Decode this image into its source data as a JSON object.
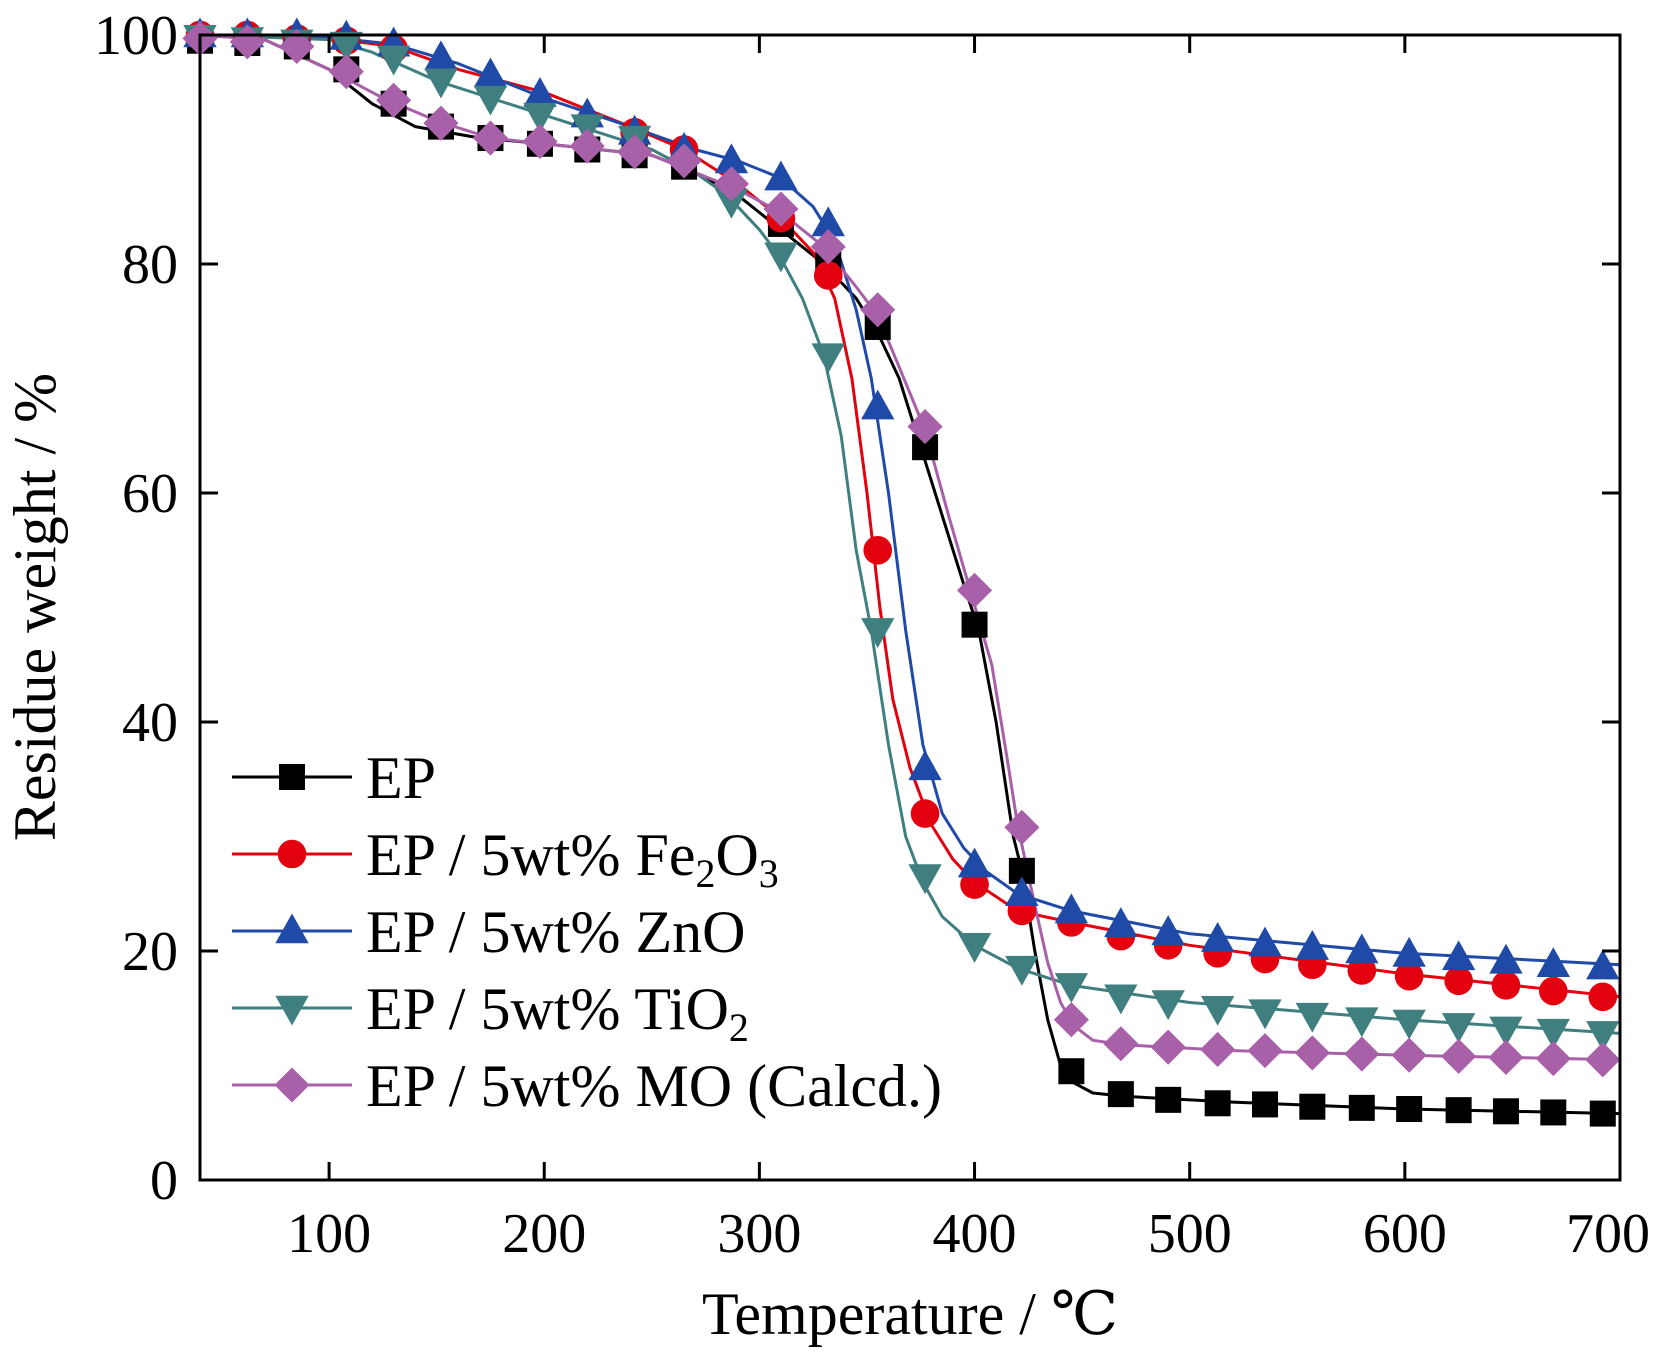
{
  "chart_data": {
    "type": "line",
    "xlabel": "Temperature / ℃",
    "ylabel": "Residue weight / %",
    "xlim": [
      40,
      700
    ],
    "ylim": [
      0,
      100
    ],
    "xticks": [
      100,
      200,
      300,
      400,
      500,
      600,
      700
    ],
    "yticks": [
      0,
      20,
      40,
      60,
      80,
      100
    ],
    "grid": false,
    "legend_position": "bottom-left",
    "series": [
      {
        "name": "EP",
        "color": "#000000",
        "marker": "square",
        "curve": [
          [
            40,
            100
          ],
          [
            70,
            99.6
          ],
          [
            100,
            97
          ],
          [
            120,
            94
          ],
          [
            140,
            92
          ],
          [
            170,
            91
          ],
          [
            200,
            90.5
          ],
          [
            250,
            89.5
          ],
          [
            270,
            88
          ],
          [
            290,
            86
          ],
          [
            310,
            83
          ],
          [
            330,
            80
          ],
          [
            345,
            77
          ],
          [
            355,
            74
          ],
          [
            365,
            70
          ],
          [
            375,
            64
          ],
          [
            385,
            58
          ],
          [
            395,
            52
          ],
          [
            402,
            48
          ],
          [
            410,
            40
          ],
          [
            418,
            30
          ],
          [
            422,
            27
          ],
          [
            428,
            20
          ],
          [
            434,
            14
          ],
          [
            440,
            10
          ],
          [
            446,
            8.5
          ],
          [
            455,
            7.6
          ],
          [
            470,
            7.3
          ],
          [
            520,
            6.8
          ],
          [
            600,
            6.2
          ],
          [
            700,
            5.8
          ]
        ],
        "markers": [
          [
            40,
            99.5
          ],
          [
            62,
            99.3
          ],
          [
            85,
            99
          ],
          [
            108,
            97
          ],
          [
            130,
            94
          ],
          [
            152,
            92
          ],
          [
            175,
            91
          ],
          [
            198,
            90.5
          ],
          [
            220,
            90
          ],
          [
            242,
            89.5
          ],
          [
            265,
            88.5
          ],
          [
            310,
            83.5
          ],
          [
            332,
            80
          ],
          [
            355,
            74.5
          ],
          [
            377,
            64
          ],
          [
            400,
            48.5
          ],
          [
            422,
            27
          ],
          [
            445,
            9.5
          ],
          [
            468,
            7.5
          ],
          [
            490,
            7
          ],
          [
            513,
            6.7
          ],
          [
            535,
            6.6
          ],
          [
            557,
            6.4
          ],
          [
            580,
            6.3
          ],
          [
            602,
            6.2
          ],
          [
            625,
            6.1
          ],
          [
            647,
            6
          ],
          [
            669,
            5.9
          ],
          [
            692,
            5.8
          ]
        ]
      },
      {
        "name": "EP / 5wt% Fe2O3",
        "color": "#e3000f",
        "marker": "circle",
        "curve": [
          [
            40,
            100
          ],
          [
            100,
            99.7
          ],
          [
            130,
            99
          ],
          [
            160,
            97
          ],
          [
            200,
            95
          ],
          [
            240,
            92
          ],
          [
            265,
            90
          ],
          [
            290,
            87
          ],
          [
            310,
            84
          ],
          [
            325,
            81
          ],
          [
            335,
            77
          ],
          [
            343,
            70
          ],
          [
            350,
            60
          ],
          [
            356,
            50
          ],
          [
            362,
            42
          ],
          [
            370,
            36
          ],
          [
            380,
            31
          ],
          [
            390,
            28
          ],
          [
            400,
            26
          ],
          [
            420,
            23.5
          ],
          [
            445,
            22.5
          ],
          [
            500,
            20.5
          ],
          [
            600,
            18
          ],
          [
            700,
            16
          ]
        ],
        "markers": [
          [
            40,
            100
          ],
          [
            62,
            100
          ],
          [
            85,
            99.7
          ],
          [
            108,
            99.5
          ],
          [
            130,
            98.8
          ],
          [
            242,
            91.5
          ],
          [
            265,
            90
          ],
          [
            310,
            84
          ],
          [
            332,
            79
          ],
          [
            355,
            55
          ],
          [
            377,
            32
          ],
          [
            400,
            25.8
          ],
          [
            422,
            23.5
          ],
          [
            445,
            22.5
          ],
          [
            468,
            21.3
          ],
          [
            490,
            20.5
          ],
          [
            513,
            19.8
          ],
          [
            535,
            19.3
          ],
          [
            557,
            18.8
          ],
          [
            580,
            18.3
          ],
          [
            602,
            17.8
          ],
          [
            625,
            17.4
          ],
          [
            647,
            17
          ],
          [
            669,
            16.5
          ],
          [
            692,
            16
          ]
        ]
      },
      {
        "name": "EP / 5wt% ZnO",
        "color": "#1f4aa8",
        "marker": "triangle-up",
        "curve": [
          [
            40,
            100
          ],
          [
            100,
            99.8
          ],
          [
            130,
            99.2
          ],
          [
            160,
            97.5
          ],
          [
            200,
            94.5
          ],
          [
            240,
            92
          ],
          [
            270,
            90
          ],
          [
            290,
            89
          ],
          [
            310,
            87.5
          ],
          [
            325,
            85
          ],
          [
            335,
            82
          ],
          [
            345,
            76
          ],
          [
            352,
            70
          ],
          [
            360,
            60
          ],
          [
            368,
            48
          ],
          [
            376,
            38
          ],
          [
            385,
            32
          ],
          [
            395,
            29
          ],
          [
            405,
            27
          ],
          [
            420,
            25
          ],
          [
            445,
            23.5
          ],
          [
            500,
            21.5
          ],
          [
            600,
            19.8
          ],
          [
            700,
            18.8
          ]
        ],
        "markers": [
          [
            40,
            100
          ],
          [
            62,
            100
          ],
          [
            85,
            100
          ],
          [
            108,
            99.8
          ],
          [
            130,
            99.2
          ],
          [
            152,
            98
          ],
          [
            175,
            96.5
          ],
          [
            198,
            94.8
          ],
          [
            220,
            93
          ],
          [
            242,
            91.5
          ],
          [
            265,
            90
          ],
          [
            287,
            89
          ],
          [
            310,
            87.5
          ],
          [
            332,
            83.5
          ],
          [
            355,
            67.5
          ],
          [
            377,
            36
          ],
          [
            400,
            27.5
          ],
          [
            422,
            25
          ],
          [
            445,
            23.5
          ],
          [
            468,
            22.3
          ],
          [
            490,
            21.6
          ],
          [
            513,
            21
          ],
          [
            535,
            20.6
          ],
          [
            557,
            20.3
          ],
          [
            580,
            20
          ],
          [
            602,
            19.7
          ],
          [
            625,
            19.4
          ],
          [
            647,
            19.1
          ],
          [
            669,
            18.8
          ],
          [
            692,
            18.6
          ]
        ]
      },
      {
        "name": "EP / 5wt% TiO2",
        "color": "#3f7f7f",
        "marker": "triangle-down",
        "curve": [
          [
            40,
            100
          ],
          [
            100,
            99.6
          ],
          [
            120,
            98.5
          ],
          [
            150,
            96
          ],
          [
            175,
            94.5
          ],
          [
            200,
            93
          ],
          [
            250,
            90
          ],
          [
            270,
            88
          ],
          [
            285,
            86
          ],
          [
            300,
            83
          ],
          [
            310,
            80.5
          ],
          [
            320,
            77
          ],
          [
            330,
            72
          ],
          [
            338,
            65
          ],
          [
            345,
            55
          ],
          [
            352,
            48
          ],
          [
            360,
            38
          ],
          [
            368,
            30
          ],
          [
            376,
            26
          ],
          [
            385,
            23
          ],
          [
            400,
            20.5
          ],
          [
            420,
            18.5
          ],
          [
            445,
            17
          ],
          [
            500,
            15.5
          ],
          [
            600,
            14
          ],
          [
            700,
            12.8
          ]
        ],
        "markers": [
          [
            40,
            99.8
          ],
          [
            62,
            99.6
          ],
          [
            85,
            99.4
          ],
          [
            108,
            99.2
          ],
          [
            130,
            98
          ],
          [
            152,
            96
          ],
          [
            175,
            94.5
          ],
          [
            198,
            93
          ],
          [
            220,
            92
          ],
          [
            242,
            91
          ],
          [
            287,
            85.5
          ],
          [
            310,
            80.8
          ],
          [
            332,
            72
          ],
          [
            355,
            48
          ],
          [
            377,
            26.5
          ],
          [
            400,
            20.5
          ],
          [
            422,
            18.5
          ],
          [
            445,
            17
          ],
          [
            468,
            16
          ],
          [
            490,
            15.5
          ],
          [
            513,
            15
          ],
          [
            535,
            14.7
          ],
          [
            557,
            14.4
          ],
          [
            580,
            14
          ],
          [
            602,
            13.8
          ],
          [
            625,
            13.5
          ],
          [
            647,
            13.2
          ],
          [
            669,
            13
          ],
          [
            692,
            12.8
          ]
        ]
      },
      {
        "name": "EP / 5wt% MO (Calcd.)",
        "color": "#a860a8",
        "marker": "diamond",
        "curve": [
          [
            40,
            100
          ],
          [
            70,
            99.6
          ],
          [
            100,
            97
          ],
          [
            125,
            94.5
          ],
          [
            150,
            92.5
          ],
          [
            175,
            91
          ],
          [
            200,
            90.5
          ],
          [
            250,
            89.5
          ],
          [
            270,
            88
          ],
          [
            290,
            86.5
          ],
          [
            310,
            84.5
          ],
          [
            330,
            81.5
          ],
          [
            345,
            78
          ],
          [
            355,
            75.5
          ],
          [
            365,
            71
          ],
          [
            377,
            65.5
          ],
          [
            388,
            58
          ],
          [
            398,
            51.5
          ],
          [
            408,
            45
          ],
          [
            415,
            37
          ],
          [
            420,
            31
          ],
          [
            428,
            24
          ],
          [
            434,
            19
          ],
          [
            440,
            15.5
          ],
          [
            446,
            13.5
          ],
          [
            455,
            12.2
          ],
          [
            470,
            11.8
          ],
          [
            520,
            11.3
          ],
          [
            600,
            10.9
          ],
          [
            700,
            10.5
          ]
        ],
        "markers": [
          [
            40,
            99.7
          ],
          [
            62,
            99.4
          ],
          [
            85,
            99
          ],
          [
            108,
            96.8
          ],
          [
            130,
            94.3
          ],
          [
            152,
            92.3
          ],
          [
            175,
            91
          ],
          [
            198,
            90.7
          ],
          [
            220,
            90.3
          ],
          [
            242,
            89.8
          ],
          [
            265,
            89
          ],
          [
            287,
            87
          ],
          [
            310,
            84.8
          ],
          [
            332,
            81.5
          ],
          [
            355,
            76
          ],
          [
            377,
            65.8
          ],
          [
            400,
            51.5
          ],
          [
            422,
            30.8
          ],
          [
            445,
            14
          ],
          [
            468,
            11.9
          ],
          [
            490,
            11.6
          ],
          [
            513,
            11.4
          ],
          [
            535,
            11.3
          ],
          [
            557,
            11.1
          ],
          [
            580,
            11
          ],
          [
            602,
            10.9
          ],
          [
            625,
            10.8
          ],
          [
            647,
            10.7
          ],
          [
            669,
            10.6
          ],
          [
            692,
            10.5
          ]
        ]
      }
    ]
  },
  "legend": {
    "items": [
      {
        "text": "EP",
        "sub": "",
        "tail": "",
        "tail_sub": "",
        "rest": ""
      },
      {
        "text": "EP / 5wt% Fe",
        "sub": "2",
        "tail": "O",
        "tail_sub": "3",
        "rest": ""
      },
      {
        "text": "EP / 5wt% ZnO",
        "sub": "",
        "tail": "",
        "tail_sub": "",
        "rest": ""
      },
      {
        "text": "EP / 5wt% TiO",
        "sub": "2",
        "tail": "",
        "tail_sub": "",
        "rest": ""
      },
      {
        "text": "EP / 5wt% MO (Calcd.)",
        "sub": "",
        "tail": "",
        "tail_sub": "",
        "rest": ""
      }
    ]
  }
}
